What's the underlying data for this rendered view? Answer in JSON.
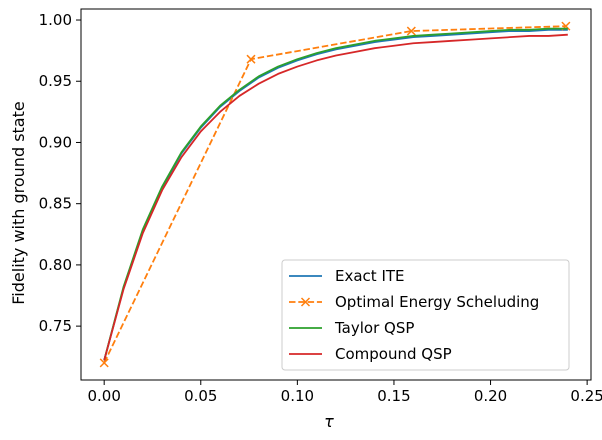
{
  "chart_data": {
    "type": "line",
    "title": "",
    "xlabel": "τ",
    "ylabel": "Fidelity with ground state",
    "xlim": [
      -0.012,
      0.252
    ],
    "ylim": [
      0.706,
      1.009
    ],
    "x_ticks": [
      0.0,
      0.05,
      0.1,
      0.15,
      0.2,
      0.25
    ],
    "x_tick_labels": [
      "0.00",
      "0.05",
      "0.10",
      "0.15",
      "0.20",
      "0.25"
    ],
    "y_ticks": [
      0.75,
      0.8,
      0.85,
      0.9,
      0.95,
      1.0
    ],
    "y_tick_labels": [
      "0.75",
      "0.80",
      "0.85",
      "0.90",
      "0.95",
      "1.00"
    ],
    "grid": false,
    "legend_position": "lower-right",
    "series": [
      {
        "name": "Exact ITE",
        "color": "#1f77b4",
        "style": "solid",
        "marker": "none",
        "x": [
          0.0,
          0.01,
          0.02,
          0.03,
          0.04,
          0.05,
          0.06,
          0.07,
          0.08,
          0.09,
          0.1,
          0.11,
          0.12,
          0.13,
          0.14,
          0.15,
          0.16,
          0.17,
          0.18,
          0.19,
          0.2,
          0.21,
          0.22,
          0.23,
          0.24
        ],
        "y": [
          0.722,
          0.781,
          0.828,
          0.863,
          0.891,
          0.912,
          0.929,
          0.942,
          0.953,
          0.961,
          0.967,
          0.972,
          0.976,
          0.979,
          0.982,
          0.984,
          0.986,
          0.987,
          0.988,
          0.989,
          0.99,
          0.991,
          0.991,
          0.992,
          0.992
        ]
      },
      {
        "name": "Optimal Energy Scheluding",
        "color": "#ff7f0e",
        "style": "dashed",
        "marker": "x",
        "x": [
          0.0,
          0.076,
          0.159,
          0.239
        ],
        "y": [
          0.72,
          0.968,
          0.991,
          0.995
        ]
      },
      {
        "name": "Taylor QSP",
        "color": "#2ca02c",
        "style": "solid",
        "marker": "none",
        "x": [
          0.0,
          0.01,
          0.02,
          0.03,
          0.04,
          0.05,
          0.06,
          0.07,
          0.08,
          0.09,
          0.1,
          0.11,
          0.12,
          0.13,
          0.14,
          0.15,
          0.16,
          0.17,
          0.18,
          0.19,
          0.2,
          0.21,
          0.22,
          0.23,
          0.24
        ],
        "y": [
          0.722,
          0.782,
          0.829,
          0.864,
          0.892,
          0.913,
          0.93,
          0.943,
          0.954,
          0.962,
          0.968,
          0.973,
          0.977,
          0.98,
          0.983,
          0.985,
          0.987,
          0.988,
          0.989,
          0.99,
          0.991,
          0.992,
          0.992,
          0.993,
          0.993
        ]
      },
      {
        "name": "Compound QSP",
        "color": "#d62728",
        "style": "solid",
        "marker": "none",
        "x": [
          0.0,
          0.01,
          0.02,
          0.03,
          0.04,
          0.05,
          0.06,
          0.07,
          0.08,
          0.09,
          0.1,
          0.11,
          0.12,
          0.13,
          0.14,
          0.15,
          0.16,
          0.17,
          0.18,
          0.19,
          0.2,
          0.21,
          0.22,
          0.23,
          0.24
        ],
        "y": [
          0.722,
          0.78,
          0.826,
          0.861,
          0.888,
          0.909,
          0.925,
          0.938,
          0.948,
          0.956,
          0.962,
          0.967,
          0.971,
          0.974,
          0.977,
          0.979,
          0.981,
          0.982,
          0.983,
          0.984,
          0.985,
          0.986,
          0.987,
          0.987,
          0.988
        ]
      }
    ]
  }
}
